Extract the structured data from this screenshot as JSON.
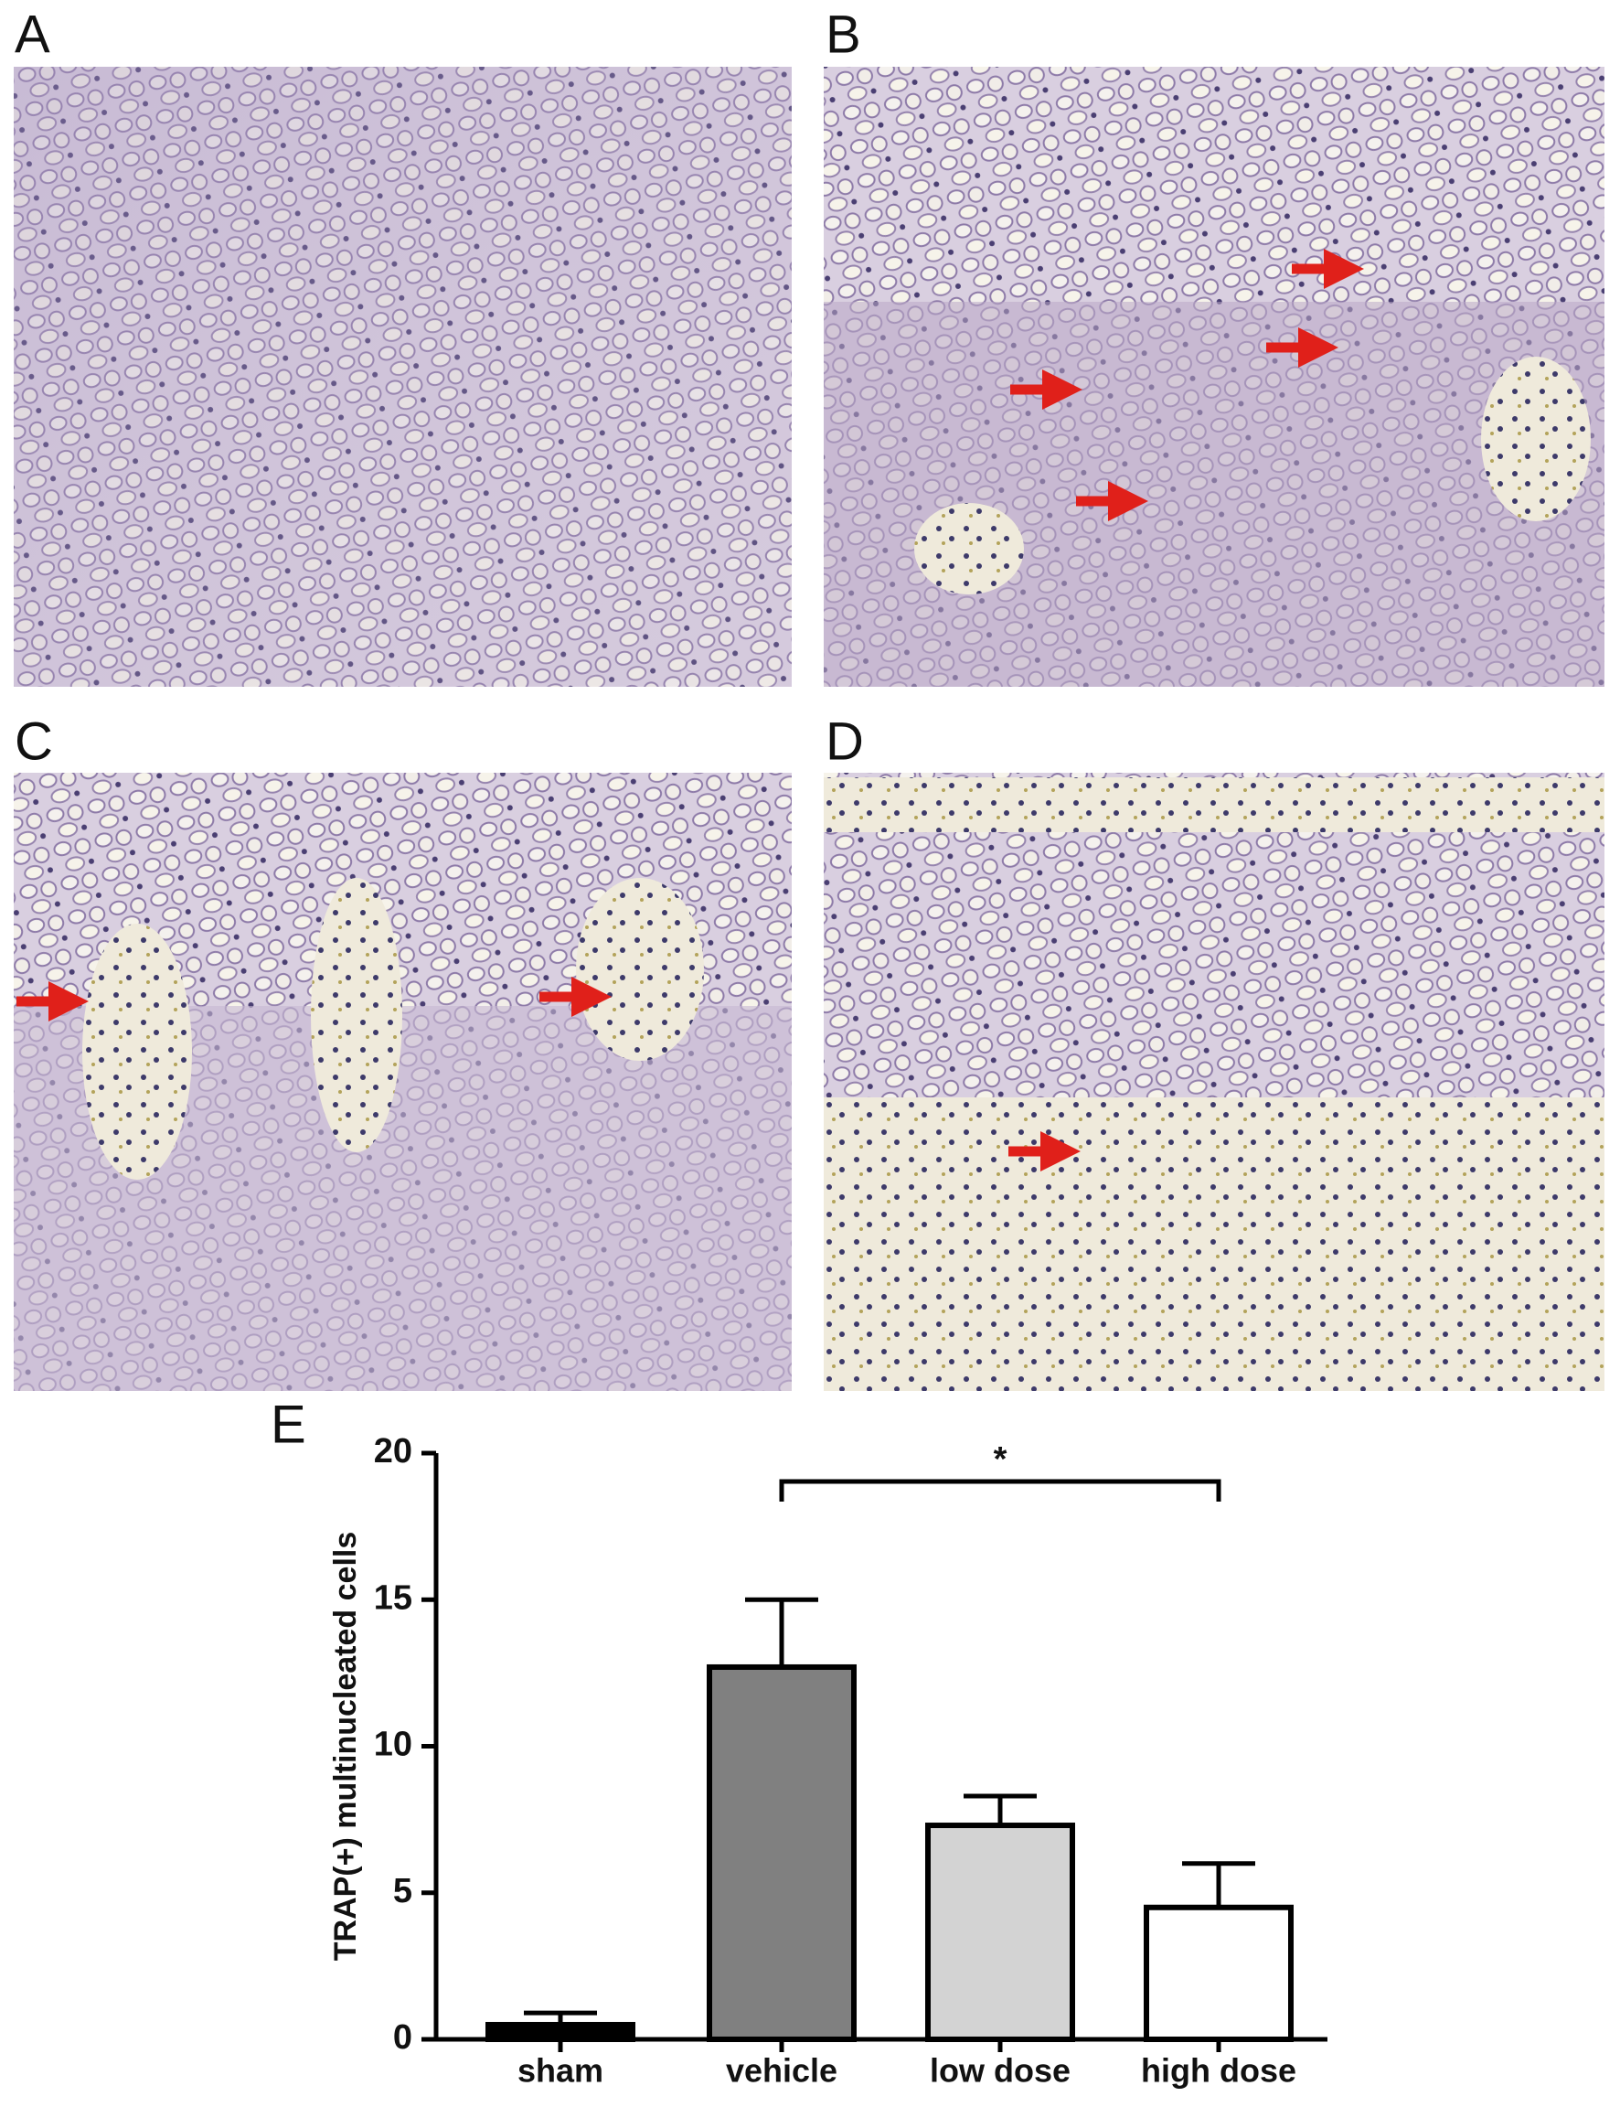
{
  "panels": [
    {
      "label": "A"
    },
    {
      "label": "B"
    },
    {
      "label": "C"
    },
    {
      "label": "D"
    }
  ],
  "chart_data": {
    "type": "bar",
    "panel_label": "E",
    "y_label": "TRAP(+) multinucleated cells",
    "categories": [
      "sham",
      "vehicle",
      "low dose",
      "high dose"
    ],
    "values": [
      0.5,
      12.7,
      7.3,
      4.5
    ],
    "errors": [
      0.4,
      2.3,
      1.0,
      1.5
    ],
    "colors": [
      "#000000",
      "#808080",
      "#d3d3d3",
      "#ffffff"
    ],
    "ylim": [
      0,
      20
    ],
    "yticks": [
      0,
      5,
      10,
      15,
      20
    ],
    "annotations": [
      {
        "text": "*"
      }
    ]
  }
}
